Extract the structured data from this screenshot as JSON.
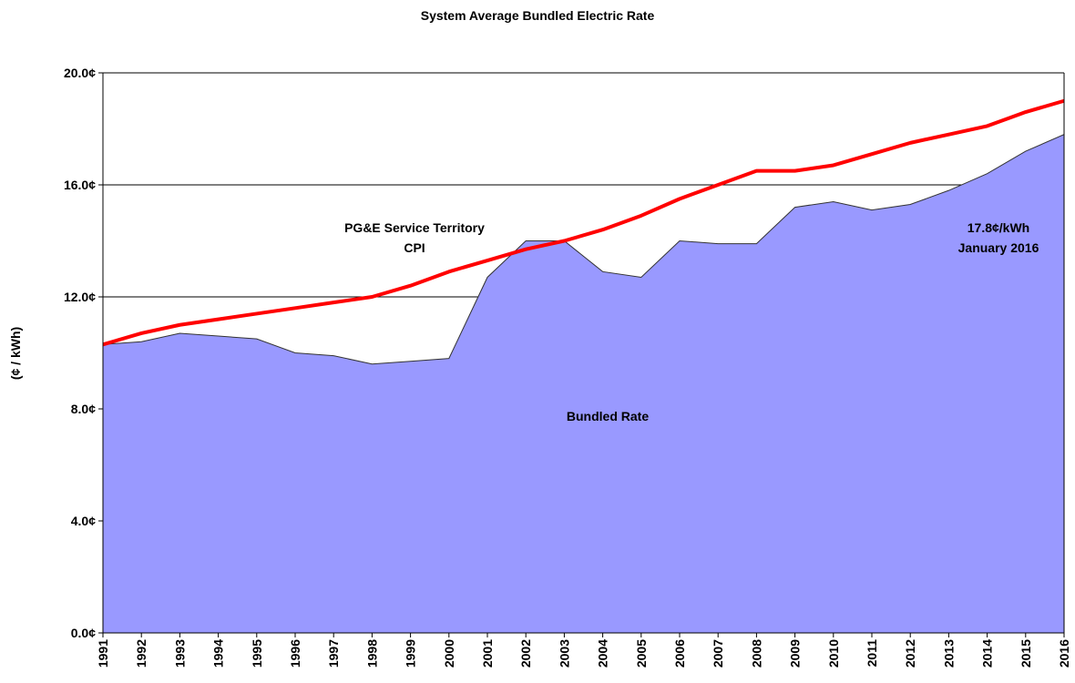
{
  "chart_data": {
    "type": "area-line",
    "title": "System Average Bundled Electric Rate",
    "y_label": "(¢ / kWh)",
    "categories": [
      "1991",
      "1992",
      "1993",
      "1994",
      "1995",
      "1996",
      "1997",
      "1998",
      "1999",
      "2000",
      "2001",
      "2002",
      "2003",
      "2004",
      "2005",
      "2006",
      "2007",
      "2008",
      "2009",
      "2010",
      "2011",
      "2012",
      "2013",
      "2014",
      "2015",
      "2016"
    ],
    "series": [
      {
        "name": "Bundled  Rate",
        "kind": "area",
        "color": "#9999ff",
        "values": [
          10.3,
          10.4,
          10.7,
          10.6,
          10.5,
          10.0,
          9.9,
          9.6,
          9.7,
          9.8,
          12.7,
          14.0,
          14.0,
          12.9,
          12.7,
          14.0,
          13.9,
          13.9,
          15.2,
          15.4,
          15.1,
          15.3,
          15.8,
          16.4,
          17.2,
          17.8
        ]
      },
      {
        "kind": "line",
        "color": "#ff0000",
        "values": [
          10.3,
          10.7,
          11.0,
          11.2,
          11.4,
          11.6,
          11.8,
          12.0,
          12.4,
          12.9,
          13.3,
          13.7,
          14.0,
          14.4,
          14.9,
          15.5,
          16.0,
          16.5,
          16.5,
          16.7,
          17.1,
          17.5,
          17.8,
          18.1,
          18.6,
          19.0
        ]
      }
    ],
    "annotations": [
      {
        "lines": [
          "PG&E  Service Territory",
          "CPI"
        ]
      },
      {
        "lines": [
          "17.8¢/kWh",
          "January 2016"
        ]
      }
    ],
    "ylim": [
      0,
      20
    ],
    "yticks": [
      {
        "value": 0,
        "label": "0.0¢"
      },
      {
        "value": 4,
        "label": "4.0¢"
      },
      {
        "value": 8,
        "label": "8.0¢"
      },
      {
        "value": 12,
        "label": "12.0¢"
      },
      {
        "value": 16,
        "label": "16.0¢"
      },
      {
        "value": 20,
        "label": "20.0¢"
      }
    ],
    "grid": true
  }
}
